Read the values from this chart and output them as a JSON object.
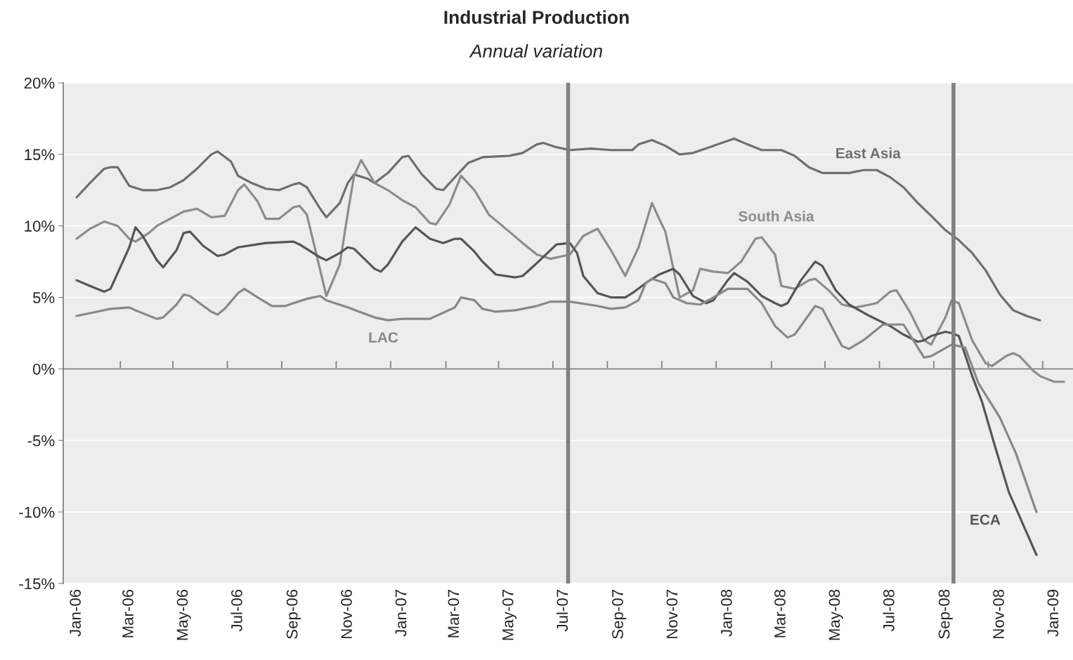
{
  "chart_data": {
    "type": "line",
    "title": "Industrial Production",
    "subtitle": "Annual variation",
    "xlim": [
      "2005-12-17",
      "2009-01-22"
    ],
    "ylim": [
      -15,
      20
    ],
    "yticks": [
      {
        "value": -15,
        "label": "-15%"
      },
      {
        "value": -10,
        "label": "-10%"
      },
      {
        "value": -5,
        "label": "-5%"
      },
      {
        "value": 0,
        "label": "0%"
      },
      {
        "value": 5,
        "label": "5%"
      },
      {
        "value": 10,
        "label": "10%"
      },
      {
        "value": 15,
        "label": "15%"
      },
      {
        "value": 20,
        "label": "20%"
      }
    ],
    "xticks": [
      {
        "value": "2006-01-01",
        "label": "Jan-06"
      },
      {
        "value": "2006-03-01",
        "label": "Mar-06"
      },
      {
        "value": "2006-05-01",
        "label": "May-06"
      },
      {
        "value": "2006-07-01",
        "label": "Jul-06"
      },
      {
        "value": "2006-09-01",
        "label": "Sep-06"
      },
      {
        "value": "2006-11-01",
        "label": "Nov-06"
      },
      {
        "value": "2007-01-01",
        "label": "Jan-07"
      },
      {
        "value": "2007-03-01",
        "label": "Mar-07"
      },
      {
        "value": "2007-05-01",
        "label": "May-07"
      },
      {
        "value": "2007-07-01",
        "label": "Jul-07"
      },
      {
        "value": "2007-09-01",
        "label": "Sep-07"
      },
      {
        "value": "2007-11-01",
        "label": "Nov-07"
      },
      {
        "value": "2008-01-01",
        "label": "Jan-08"
      },
      {
        "value": "2008-03-01",
        "label": "Mar-08"
      },
      {
        "value": "2008-05-01",
        "label": "May-08"
      },
      {
        "value": "2008-07-01",
        "label": "Jul-08"
      },
      {
        "value": "2008-09-01",
        "label": "Sep-08"
      },
      {
        "value": "2008-11-01",
        "label": "Nov-08"
      },
      {
        "value": "2009-01-01",
        "label": "Jan-09"
      },
      {
        "value": "2006-02-19",
        "label": null
      },
      {
        "value": "2006-04-19",
        "label": null
      },
      {
        "value": "2006-06-19",
        "label": null
      },
      {
        "value": "2006-08-19",
        "label": null
      },
      {
        "value": "2006-10-19",
        "label": null
      },
      {
        "value": "2006-12-19",
        "label": null
      },
      {
        "value": "2007-02-19",
        "label": null
      },
      {
        "value": "2007-04-19",
        "label": null
      },
      {
        "value": "2007-06-19",
        "label": null
      },
      {
        "value": "2007-08-19",
        "label": null
      },
      {
        "value": "2007-10-19",
        "label": null
      },
      {
        "value": "2007-12-19",
        "label": null
      },
      {
        "value": "2008-02-19",
        "label": null
      },
      {
        "value": "2008-04-19",
        "label": null
      },
      {
        "value": "2008-06-19",
        "label": null
      },
      {
        "value": "2008-08-19",
        "label": null
      },
      {
        "value": "2008-10-19",
        "label": null
      },
      {
        "value": "2008-12-19",
        "label": null
      }
    ],
    "grid": "y",
    "ref_lines": [
      {
        "axis": "x",
        "value": "2007-07-06",
        "color": "#808080"
      },
      {
        "axis": "x",
        "value": "2008-09-10",
        "color": "#808080"
      }
    ],
    "series": [
      {
        "name": "East Asia",
        "color": "#6e6e6e",
        "x": [
          "2006-01-01",
          "2006-01-16",
          "2006-02-01",
          "2006-02-08",
          "2006-02-16",
          "2006-03-01",
          "2006-03-16",
          "2006-04-01",
          "2006-04-16",
          "2006-05-01",
          "2006-05-16",
          "2006-06-01",
          "2006-06-08",
          "2006-06-23",
          "2006-07-01",
          "2006-07-16",
          "2006-08-01",
          "2006-08-16",
          "2006-09-01",
          "2006-09-08",
          "2006-09-16",
          "2006-10-01",
          "2006-10-08",
          "2006-10-23",
          "2006-11-01",
          "2006-11-08",
          "2006-11-23",
          "2006-12-01",
          "2006-12-16",
          "2007-01-01",
          "2007-01-08",
          "2007-01-23",
          "2007-02-08",
          "2007-02-16",
          "2007-03-01",
          "2007-03-16",
          "2007-04-01",
          "2007-05-01",
          "2007-05-16",
          "2007-06-01",
          "2007-06-08",
          "2007-06-23",
          "2007-07-08",
          "2007-08-01",
          "2007-08-23",
          "2007-09-16",
          "2007-09-23",
          "2007-10-08",
          "2007-10-23",
          "2007-11-08",
          "2007-11-23",
          "2007-12-16",
          "2008-01-08",
          "2008-01-23",
          "2008-02-08",
          "2008-03-01",
          "2008-03-16",
          "2008-04-01",
          "2008-04-16",
          "2008-05-16",
          "2008-06-01",
          "2008-06-16",
          "2008-07-01",
          "2008-07-16",
          "2008-08-01",
          "2008-08-16",
          "2008-09-01",
          "2008-09-16",
          "2008-10-01",
          "2008-10-16",
          "2008-11-01",
          "2008-11-16",
          "2008-12-01",
          "2008-12-16"
        ],
        "values": [
          12.0,
          13.0,
          14.0,
          14.1,
          14.1,
          12.8,
          12.5,
          12.5,
          12.7,
          13.2,
          14.0,
          15.0,
          15.2,
          14.5,
          13.5,
          13.0,
          12.6,
          12.5,
          12.9,
          13.0,
          12.7,
          11.2,
          10.6,
          11.6,
          13.0,
          13.6,
          13.3,
          13.0,
          13.7,
          14.8,
          14.9,
          13.6,
          12.6,
          12.5,
          13.4,
          14.4,
          14.8,
          14.9,
          15.1,
          15.7,
          15.8,
          15.5,
          15.3,
          15.4,
          15.3,
          15.3,
          15.7,
          16.0,
          15.6,
          15.0,
          15.1,
          15.6,
          16.1,
          15.7,
          15.3,
          15.3,
          14.9,
          14.1,
          13.7,
          13.7,
          13.9,
          13.9,
          13.4,
          12.7,
          11.6,
          10.7,
          9.7,
          9.0,
          8.1,
          6.9,
          5.2,
          4.1,
          3.7,
          3.4
        ]
      },
      {
        "name": "South Asia",
        "color": "#8c8c8c",
        "x": [
          "2006-01-01",
          "2006-01-16",
          "2006-02-01",
          "2006-02-16",
          "2006-03-01",
          "2006-03-08",
          "2006-03-23",
          "2006-04-01",
          "2006-04-16",
          "2006-05-01",
          "2006-05-16",
          "2006-06-01",
          "2006-06-16",
          "2006-07-01",
          "2006-07-08",
          "2006-07-23",
          "2006-08-01",
          "2006-08-16",
          "2006-09-01",
          "2006-09-08",
          "2006-09-16",
          "2006-09-23",
          "2006-10-08",
          "2006-10-23",
          "2006-11-01",
          "2006-11-08",
          "2006-11-16",
          "2006-12-01",
          "2006-12-16",
          "2007-01-01",
          "2007-01-16",
          "2007-02-01",
          "2007-02-08",
          "2007-02-23",
          "2007-03-08",
          "2007-03-23",
          "2007-04-08",
          "2007-05-01",
          "2007-05-16",
          "2007-06-01",
          "2007-06-16",
          "2007-07-01",
          "2007-07-08",
          "2007-07-23",
          "2007-08-08",
          "2007-08-23",
          "2007-09-08",
          "2007-09-23",
          "2007-10-08",
          "2007-10-16",
          "2007-10-23",
          "2007-11-01",
          "2007-11-08",
          "2007-11-23",
          "2007-12-01",
          "2007-12-16",
          "2008-01-01",
          "2008-01-16",
          "2008-02-01",
          "2008-02-08",
          "2008-02-23",
          "2008-03-01",
          "2008-03-16",
          "2008-04-01",
          "2008-04-08",
          "2008-04-23",
          "2008-05-08",
          "2008-05-23",
          "2008-06-01",
          "2008-06-16",
          "2008-07-01",
          "2008-07-08",
          "2008-07-23",
          "2008-08-08",
          "2008-08-16",
          "2008-09-01",
          "2008-09-08",
          "2008-09-16",
          "2008-10-01",
          "2008-10-16",
          "2008-10-23",
          "2008-11-08",
          "2008-11-16",
          "2008-11-23",
          "2008-12-08",
          "2008-12-16",
          "2009-01-01",
          "2009-01-12"
        ],
        "values": [
          9.1,
          9.8,
          10.3,
          10.0,
          9.1,
          8.9,
          9.5,
          10.0,
          10.5,
          11.0,
          11.2,
          10.6,
          10.7,
          12.5,
          12.9,
          11.7,
          10.5,
          10.5,
          11.3,
          11.4,
          10.8,
          9.0,
          5.1,
          7.3,
          10.9,
          13.5,
          14.6,
          13.0,
          12.5,
          11.8,
          11.3,
          10.2,
          10.1,
          11.5,
          13.5,
          12.5,
          10.8,
          9.6,
          8.8,
          8.0,
          7.7,
          7.9,
          8.0,
          9.3,
          9.8,
          8.3,
          6.5,
          8.5,
          11.6,
          10.5,
          9.6,
          7.0,
          5.0,
          5.5,
          7.0,
          6.8,
          6.7,
          7.5,
          9.1,
          9.2,
          8.0,
          5.8,
          5.6,
          6.2,
          6.3,
          5.5,
          4.5,
          4.3,
          4.4,
          4.6,
          5.4,
          5.5,
          4.0,
          2.0,
          1.7,
          3.6,
          4.8,
          4.6,
          2.0,
          0.4,
          0.2,
          0.9,
          1.1,
          0.9,
          -0.1,
          -0.5,
          -0.9,
          -0.9
        ]
      },
      {
        "name": "ECA",
        "color": "#555555",
        "x": [
          "2006-01-01",
          "2006-01-16",
          "2006-02-01",
          "2006-02-08",
          "2006-03-01",
          "2006-03-08",
          "2006-03-16",
          "2006-04-01",
          "2006-04-08",
          "2006-04-23",
          "2006-05-01",
          "2006-05-08",
          "2006-05-23",
          "2006-06-08",
          "2006-06-16",
          "2006-07-01",
          "2006-08-01",
          "2006-09-01",
          "2006-09-08",
          "2006-10-01",
          "2006-10-08",
          "2006-10-23",
          "2006-11-01",
          "2006-11-08",
          "2006-12-01",
          "2006-12-08",
          "2006-12-16",
          "2007-01-01",
          "2007-01-16",
          "2007-02-01",
          "2007-02-16",
          "2007-03-01",
          "2007-03-08",
          "2007-03-23",
          "2007-04-01",
          "2007-04-16",
          "2007-05-08",
          "2007-05-16",
          "2007-06-01",
          "2007-06-23",
          "2007-07-08",
          "2007-07-16",
          "2007-07-23",
          "2007-08-08",
          "2007-08-23",
          "2007-09-08",
          "2007-09-16",
          "2007-10-01",
          "2007-10-16",
          "2007-11-01",
          "2007-11-08",
          "2007-11-23",
          "2007-12-08",
          "2007-12-16",
          "2008-01-01",
          "2008-01-08",
          "2008-01-23",
          "2008-02-08",
          "2008-02-23",
          "2008-03-01",
          "2008-03-08",
          "2008-03-23",
          "2008-04-08",
          "2008-04-16",
          "2008-05-01",
          "2008-05-16",
          "2008-06-08",
          "2008-07-01",
          "2008-07-16",
          "2008-08-01",
          "2008-08-08",
          "2008-08-16",
          "2008-09-01",
          "2008-09-08",
          "2008-09-16",
          "2008-10-01",
          "2008-10-12",
          "2008-10-27",
          "2008-11-11",
          "2008-12-12"
        ],
        "values": [
          6.2,
          5.8,
          5.4,
          5.6,
          8.5,
          9.9,
          9.3,
          7.6,
          7.1,
          8.3,
          9.5,
          9.6,
          8.6,
          7.9,
          8.0,
          8.5,
          8.8,
          8.9,
          8.7,
          7.8,
          7.6,
          8.1,
          8.5,
          8.4,
          7.0,
          6.8,
          7.3,
          8.9,
          9.9,
          9.1,
          8.8,
          9.1,
          9.1,
          8.2,
          7.5,
          6.6,
          6.4,
          6.5,
          7.4,
          8.7,
          8.8,
          8.1,
          6.5,
          5.3,
          5.0,
          5.0,
          5.3,
          6.0,
          6.6,
          7.0,
          6.6,
          5.1,
          4.6,
          4.8,
          6.2,
          6.7,
          6.1,
          5.1,
          4.6,
          4.4,
          4.6,
          6.2,
          7.5,
          7.2,
          5.5,
          4.5,
          3.7,
          3.0,
          2.4,
          1.9,
          2.0,
          2.3,
          2.6,
          2.5,
          2.3,
          -0.5,
          -2.3,
          -5.5,
          -8.6,
          -13.0
        ]
      },
      {
        "name": "LAC",
        "color": "#888888",
        "x": [
          "2006-01-01",
          "2006-01-16",
          "2006-02-08",
          "2006-03-01",
          "2006-03-08",
          "2006-04-01",
          "2006-04-08",
          "2006-04-23",
          "2006-05-01",
          "2006-05-08",
          "2006-06-01",
          "2006-06-08",
          "2006-06-16",
          "2006-07-01",
          "2006-07-08",
          "2006-07-23",
          "2006-08-08",
          "2006-08-23",
          "2006-09-01",
          "2006-09-16",
          "2006-10-01",
          "2006-10-08",
          "2006-11-01",
          "2006-12-01",
          "2006-12-16",
          "2007-01-01",
          "2007-02-01",
          "2007-02-08",
          "2007-03-01",
          "2007-03-08",
          "2007-03-23",
          "2007-04-01",
          "2007-04-16",
          "2007-05-08",
          "2007-06-01",
          "2007-06-16",
          "2007-07-08",
          "2007-08-08",
          "2007-08-23",
          "2007-09-08",
          "2007-09-23",
          "2007-10-01",
          "2007-10-08",
          "2007-10-23",
          "2007-11-01",
          "2007-11-16",
          "2007-12-01",
          "2007-12-16",
          "2008-01-01",
          "2008-01-23",
          "2008-02-08",
          "2008-02-23",
          "2008-03-08",
          "2008-03-16",
          "2008-04-08",
          "2008-04-16",
          "2008-05-08",
          "2008-05-16",
          "2008-06-01",
          "2008-06-23",
          "2008-07-16",
          "2008-08-08",
          "2008-08-16",
          "2008-09-08",
          "2008-09-23",
          "2008-10-08",
          "2008-11-01",
          "2008-11-19",
          "2008-12-12"
        ],
        "values": [
          3.7,
          3.9,
          4.2,
          4.3,
          4.1,
          3.5,
          3.6,
          4.5,
          5.2,
          5.1,
          4.0,
          3.8,
          4.2,
          5.3,
          5.6,
          5.0,
          4.4,
          4.4,
          4.6,
          4.9,
          5.1,
          4.8,
          4.3,
          3.6,
          3.4,
          3.5,
          3.5,
          3.7,
          4.3,
          5.0,
          4.8,
          4.2,
          4.0,
          4.1,
          4.4,
          4.7,
          4.7,
          4.4,
          4.2,
          4.3,
          4.8,
          6.0,
          6.3,
          6.0,
          5.0,
          4.6,
          4.5,
          5.0,
          5.6,
          5.6,
          4.6,
          3.0,
          2.2,
          2.4,
          4.4,
          4.2,
          1.6,
          1.4,
          2.0,
          3.1,
          3.1,
          0.8,
          0.9,
          1.7,
          1.5,
          -1.0,
          -3.4,
          -5.9,
          -10.0
        ]
      }
    ]
  }
}
